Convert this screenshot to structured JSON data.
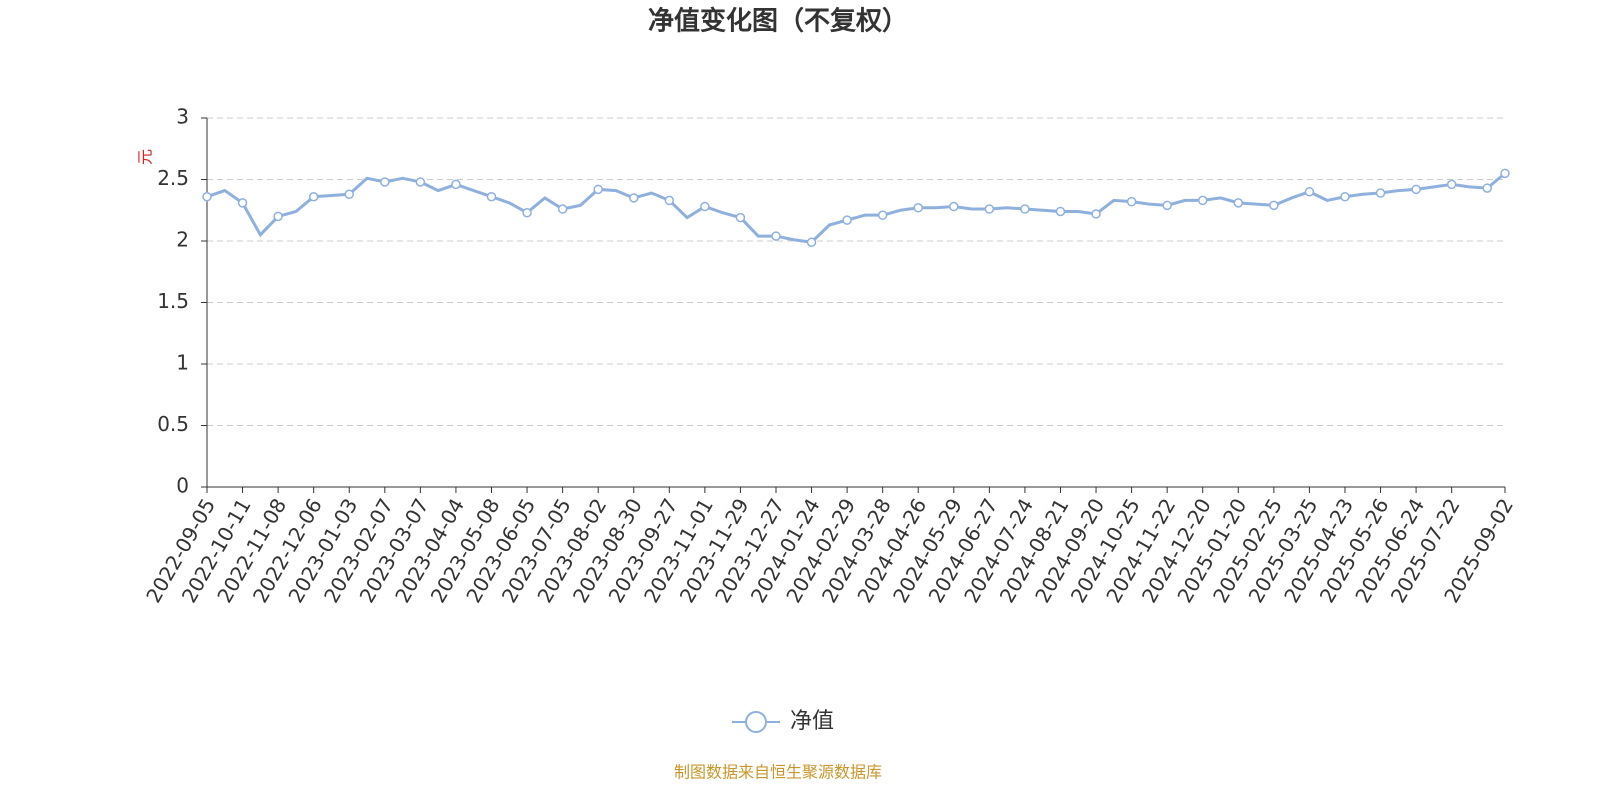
{
  "chart_data": {
    "type": "line",
    "title": "净值变化图（不复权）",
    "y_axis_label": "元",
    "categories": [
      "2022-09-05",
      null,
      "2022-10-11",
      null,
      "2022-11-08",
      null,
      "2022-12-06",
      null,
      "2023-01-03",
      null,
      "2023-02-07",
      null,
      "2023-03-07",
      null,
      "2023-04-04",
      null,
      "2023-05-08",
      null,
      "2023-06-05",
      null,
      "2023-07-05",
      null,
      "2023-08-02",
      null,
      "2023-08-30",
      null,
      "2023-09-27",
      null,
      "2023-11-01",
      null,
      "2023-11-29",
      null,
      "2023-12-27",
      null,
      "2024-01-24",
      null,
      "2024-02-29",
      null,
      "2024-03-28",
      null,
      "2024-04-26",
      null,
      "2024-05-29",
      null,
      "2024-06-27",
      null,
      "2024-07-24",
      null,
      "2024-08-21",
      null,
      "2024-09-20",
      null,
      "2024-10-25",
      null,
      "2024-11-22",
      null,
      "2024-12-20",
      null,
      "2025-01-20",
      null,
      "2025-02-25",
      null,
      "2025-03-25",
      null,
      "2025-04-23",
      null,
      "2025-05-26",
      null,
      "2025-06-24",
      null,
      "2025-07-22",
      null,
      null,
      "2025-09-02"
    ],
    "series": [
      {
        "name": "净值",
        "color": "#8fb0dd",
        "values": [
          2.36,
          2.41,
          2.31,
          2.05,
          2.2,
          2.24,
          2.36,
          2.37,
          2.38,
          2.51,
          2.48,
          2.51,
          2.48,
          2.41,
          2.46,
          2.41,
          2.36,
          2.31,
          2.23,
          2.35,
          2.26,
          2.29,
          2.42,
          2.41,
          2.35,
          2.39,
          2.33,
          2.19,
          2.28,
          2.23,
          2.19,
          2.04,
          2.04,
          2.01,
          1.99,
          2.13,
          2.17,
          2.21,
          2.21,
          2.25,
          2.27,
          2.27,
          2.28,
          2.26,
          2.26,
          2.27,
          2.26,
          2.25,
          2.24,
          2.24,
          2.22,
          2.33,
          2.32,
          2.3,
          2.29,
          2.33,
          2.33,
          2.35,
          2.31,
          2.3,
          2.29,
          2.35,
          2.4,
          2.33,
          2.36,
          2.38,
          2.39,
          2.41,
          2.42,
          2.44,
          2.46,
          2.44,
          2.43,
          2.55
        ]
      }
    ],
    "ylim": [
      0,
      3
    ],
    "yticks": [
      0,
      0.5,
      1,
      1.5,
      2,
      2.5,
      3
    ],
    "grid": true,
    "source": "制图数据来自恒生聚源数据库"
  }
}
